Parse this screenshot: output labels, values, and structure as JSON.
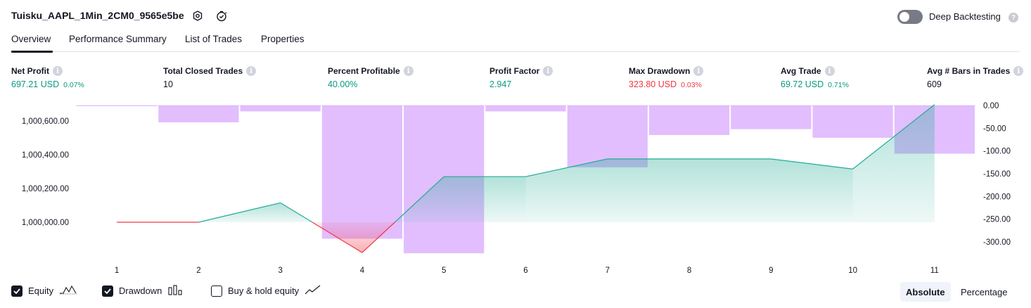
{
  "header": {
    "title": "Tuisku_AAPL_1Min_2CM0_9565e5be",
    "deep_backtesting_label": "Deep Backtesting",
    "help_glyph": "?"
  },
  "tabs": [
    {
      "label": "Overview",
      "active": true
    },
    {
      "label": "Performance Summary",
      "active": false
    },
    {
      "label": "List of Trades",
      "active": false
    },
    {
      "label": "Properties",
      "active": false
    }
  ],
  "metrics": [
    {
      "label": "Net Profit",
      "value": "697.21 USD",
      "pct": "0.07%",
      "color": "#089981"
    },
    {
      "label": "Total Closed Trades",
      "value": "10",
      "pct": "",
      "color": "#131722"
    },
    {
      "label": "Percent Profitable",
      "value": "40.00%",
      "pct": "",
      "color": "#089981"
    },
    {
      "label": "Profit Factor",
      "value": "2.947",
      "pct": "",
      "color": "#089981"
    },
    {
      "label": "Max Drawdown",
      "value": "323.80 USD",
      "pct": "0.03%",
      "color": "#f23645"
    },
    {
      "label": "Avg Trade",
      "value": "69.72 USD",
      "pct": "0.71%",
      "color": "#089981"
    },
    {
      "label": "Avg # Bars in Trades",
      "value": "609",
      "pct": "",
      "color": "#131722"
    }
  ],
  "chart_data": {
    "type": "line",
    "x": [
      1,
      2,
      3,
      4,
      5,
      6,
      7,
      8,
      9,
      10,
      11
    ],
    "series": [
      {
        "name": "Equity",
        "values": [
          1000000,
          1000000,
          1000115,
          999820,
          1000270,
          1000270,
          1000375,
          1000375,
          1000375,
          1000315,
          1000697
        ],
        "color": "#22ab94"
      },
      {
        "name": "Drawdown",
        "values": [
          0,
          -37,
          -13,
          -293,
          -325,
          -13,
          -136,
          -65,
          -52,
          -71,
          -106
        ],
        "color": "#ce93d8",
        "type": "bar",
        "axis": "right"
      }
    ],
    "left_axis": {
      "ticks": [
        "1,000,000.00",
        "1,000,200.00",
        "1,000,400.00",
        "1,000,600.00"
      ],
      "tick_values": [
        1000000,
        1000200,
        1000400,
        1000600
      ]
    },
    "right_axis": {
      "ticks": [
        "0.00",
        "-50.00",
        "-100.00",
        "-150.00",
        "-200.00",
        "-250.00",
        "-300.00"
      ],
      "tick_values": [
        0,
        -50,
        -100,
        -150,
        -200,
        -250,
        -300
      ]
    },
    "x_ticks": [
      "1",
      "2",
      "3",
      "4",
      "5",
      "6",
      "7",
      "8",
      "9",
      "10",
      "11"
    ],
    "grid": false
  },
  "legend": {
    "equity_label": "Equity",
    "drawdown_label": "Drawdown",
    "buyhold_label": "Buy & hold equity"
  },
  "view_toggle": {
    "absolute_label": "Absolute",
    "percentage_label": "Percentage"
  }
}
